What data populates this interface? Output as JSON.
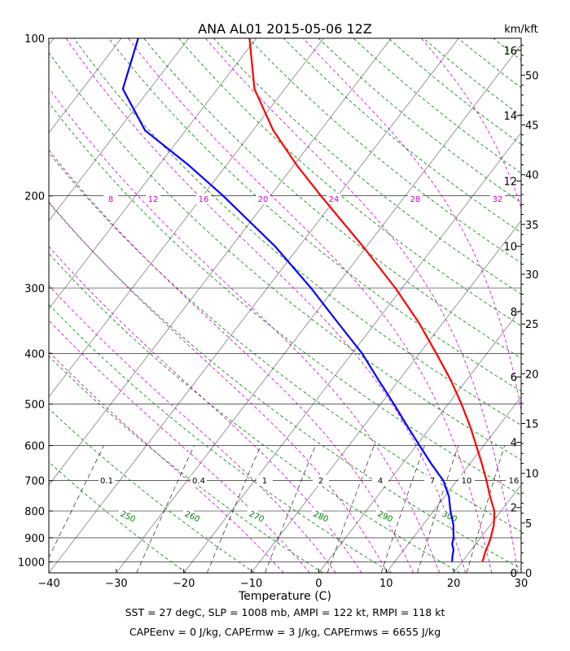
{
  "chart_data": {
    "type": "skew-t",
    "title": "ANA AL01 2015-05-06 12Z",
    "xlabel": "Temperature (C)",
    "right_axis_label": "km/kft",
    "xlim": [
      -40,
      30
    ],
    "plim": [
      1050,
      100
    ],
    "pressure_ticks": [
      100,
      200,
      300,
      400,
      500,
      600,
      700,
      800,
      900,
      1000
    ],
    "temperature_ticks": [
      -40,
      -30,
      -20,
      -10,
      0,
      10,
      20,
      30
    ],
    "km_ticks": [
      0,
      2,
      4,
      6,
      8,
      10,
      12,
      14,
      16
    ],
    "kft_ticks": [
      0,
      5,
      10,
      15,
      20,
      25,
      30,
      35,
      40,
      45,
      50
    ],
    "colors": {
      "temperature": "#ff0000",
      "dewpoint": "#0000ff",
      "isotherm": "#808080",
      "isobar": "#000000",
      "dry_adiabat": "#008000",
      "moist_adiabat": "#cc00cc",
      "mixing_ratio": "#000000"
    },
    "series": [
      {
        "name": "temperature",
        "values": [
          {
            "p": 1000,
            "t": 23.0
          },
          {
            "p": 975,
            "t": 22.6
          },
          {
            "p": 950,
            "t": 22.2
          },
          {
            "p": 925,
            "t": 21.9
          },
          {
            "p": 900,
            "t": 21.5
          },
          {
            "p": 850,
            "t": 20.5
          },
          {
            "p": 800,
            "t": 19.0
          },
          {
            "p": 750,
            "t": 16.7
          },
          {
            "p": 700,
            "t": 14.4
          },
          {
            "p": 650,
            "t": 11.8
          },
          {
            "p": 600,
            "t": 8.9
          },
          {
            "p": 550,
            "t": 5.7
          },
          {
            "p": 500,
            "t": 2.0
          },
          {
            "p": 450,
            "t": -2.3
          },
          {
            "p": 400,
            "t": -7.5
          },
          {
            "p": 350,
            "t": -13.5
          },
          {
            "p": 300,
            "t": -21.0
          },
          {
            "p": 250,
            "t": -30.5
          },
          {
            "p": 200,
            "t": -42.5
          },
          {
            "p": 175,
            "t": -49.5
          },
          {
            "p": 150,
            "t": -57.0
          },
          {
            "p": 125,
            "t": -64.5
          },
          {
            "p": 100,
            "t": -71.0
          }
        ]
      },
      {
        "name": "dewpoint",
        "values": [
          {
            "p": 1000,
            "t": 18.5
          },
          {
            "p": 975,
            "t": 17.9
          },
          {
            "p": 950,
            "t": 17.4
          },
          {
            "p": 925,
            "t": 16.5
          },
          {
            "p": 900,
            "t": 16.0
          },
          {
            "p": 850,
            "t": 14.5
          },
          {
            "p": 800,
            "t": 12.5
          },
          {
            "p": 750,
            "t": 10.6
          },
          {
            "p": 700,
            "t": 8.0
          },
          {
            "p": 650,
            "t": 4.3
          },
          {
            "p": 600,
            "t": 0.5
          },
          {
            "p": 550,
            "t": -3.6
          },
          {
            "p": 500,
            "t": -8.0
          },
          {
            "p": 450,
            "t": -13.0
          },
          {
            "p": 400,
            "t": -18.5
          },
          {
            "p": 350,
            "t": -25.5
          },
          {
            "p": 300,
            "t": -33.5
          },
          {
            "p": 250,
            "t": -43.5
          },
          {
            "p": 200,
            "t": -57.0
          },
          {
            "p": 175,
            "t": -65.5
          },
          {
            "p": 150,
            "t": -76.0
          },
          {
            "p": 125,
            "t": -84.0
          },
          {
            "p": 100,
            "t": -87.5
          }
        ]
      }
    ],
    "moist_adiabat_labels": [
      "8",
      "12",
      "16",
      "20",
      "24",
      "28",
      "32"
    ],
    "mixing_ratio_labels": [
      "0.1",
      "0.4",
      "1",
      "2",
      "4",
      "7",
      "10",
      "16"
    ],
    "dry_adiabat_labels": [
      "250",
      "260",
      "270",
      "280",
      "290",
      "300"
    ],
    "footer_lines": [
      "SST = 27 degC, SLP = 1008 mb, AMPI = 122 kt, RMPI = 118 kt",
      "CAPEenv = 0 J/kg, CAPErmw = 3 J/kg, CAPErmws = 6655 J/kg"
    ]
  }
}
